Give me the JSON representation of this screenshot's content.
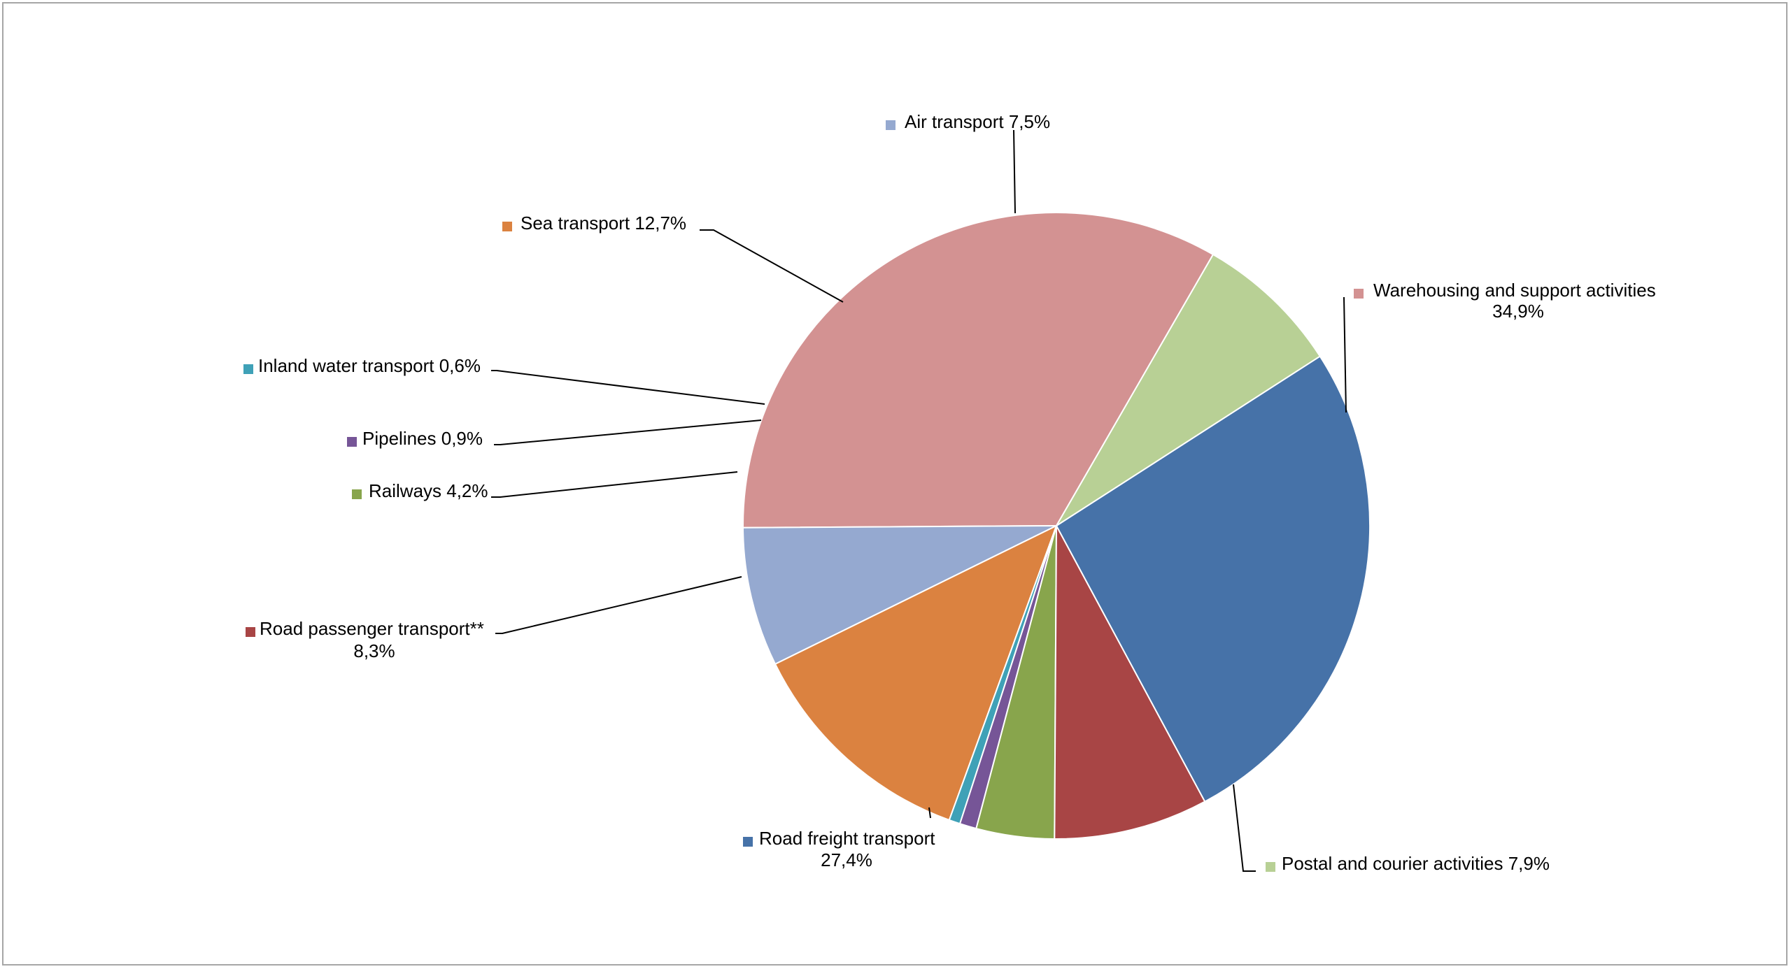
{
  "chart_data": {
    "type": "pie",
    "title": "",
    "start_angle_deg": -60,
    "direction": "counterclockwise",
    "series": [
      {
        "name": "",
        "slices": [
          {
            "label": "Warehousing and support activities",
            "value_text": "34,9%",
            "value": 34.9,
            "color": "#d39292",
            "label_lines": [
              "Warehousing and support activities",
              "34,9%"
            ]
          },
          {
            "label": "Air transport",
            "value_text": "7,5%",
            "value": 7.5,
            "color": "#95a9d0",
            "label_lines": [
              "Air transport 7,5%"
            ]
          },
          {
            "label": "Sea transport",
            "value_text": "12,7%",
            "value": 12.7,
            "color": "#db8240",
            "label_lines": [
              "Sea transport 12,7%"
            ]
          },
          {
            "label": "Inland water transport",
            "value_text": "0,6%",
            "value": 0.6,
            "color": "#3fa1b7",
            "label_lines": [
              "Inland water transport 0,6%"
            ]
          },
          {
            "label": "Pipelines",
            "value_text": "0,9%",
            "value": 0.9,
            "color": "#765597",
            "label_lines": [
              "Pipelines 0,9%"
            ]
          },
          {
            "label": "Railways",
            "value_text": "4,2%",
            "value": 4.2,
            "color": "#88a54c",
            "label_lines": [
              "Railways 4,2%"
            ]
          },
          {
            "label": "Road passenger transport**",
            "value_text": "8,3%",
            "value": 8.3,
            "color": "#a84545",
            "label_lines": [
              "Road passenger transport**",
              "8,3%"
            ]
          },
          {
            "label": "Road freight transport",
            "value_text": "27,4%",
            "value": 27.4,
            "color": "#4672a8",
            "label_lines": [
              "Road freight transport",
              "27,4%"
            ]
          },
          {
            "label": "Postal and courier activities",
            "value_text": "7,9%",
            "value": 7.9,
            "color": "#b8d095",
            "label_lines": [
              "Postal and courier activities 7,9%"
            ]
          }
        ]
      }
    ],
    "legend": "none",
    "data_labels": "outside-with-leader-lines"
  }
}
